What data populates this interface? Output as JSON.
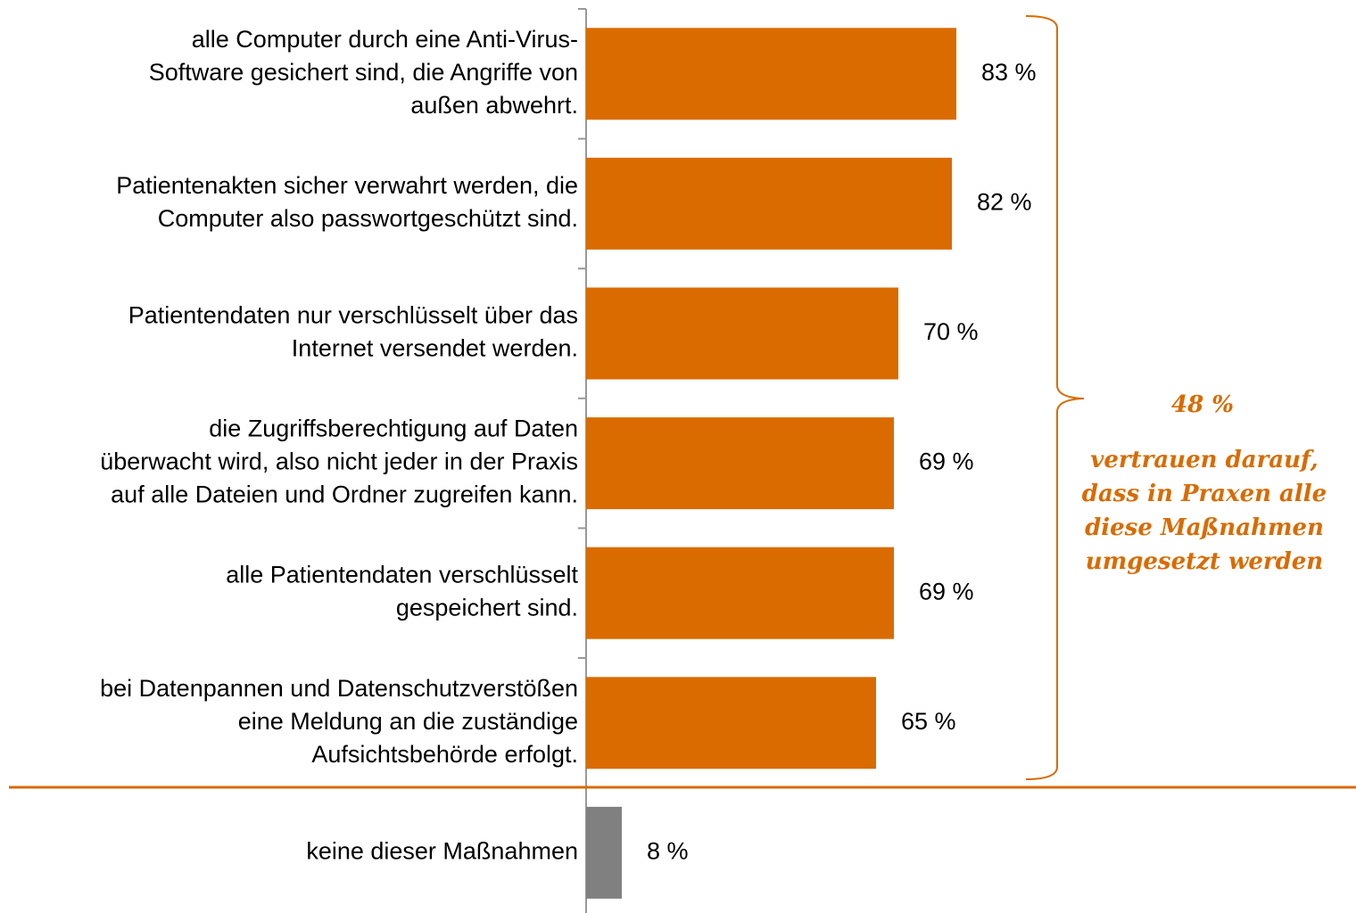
{
  "chart_data": {
    "type": "bar",
    "orientation": "horizontal",
    "categories": [
      "alle Computer durch eine Anti-Virus-\nSoftware gesichert sind, die Angriffe von\naußen abwehrt.",
      "Patientenakten sicher verwahrt werden, die\nComputer also passwortgeschützt sind.",
      "Patientendaten nur verschlüsselt über das\nInternet versendet werden.",
      "die Zugriffsberechtigung auf Daten\nüberwacht wird, also nicht jeder in der Praxis\nauf alle Dateien und Ordner zugreifen kann.",
      "alle Patientendaten verschlüsselt\ngespeichert sind.",
      "bei Datenpannen und Datenschutzverstößen\neine Meldung an die zuständige\nAufsichtsbehörde erfolgt.",
      "keine dieser Maßnahmen"
    ],
    "values": [
      83,
      82,
      70,
      69,
      69,
      65,
      8
    ],
    "value_labels": [
      "83 %",
      "82 %",
      "70 %",
      "69 %",
      "69 %",
      "65 %",
      "8 %"
    ],
    "colors": [
      "#d96b00",
      "#d96b00",
      "#d96b00",
      "#d96b00",
      "#d96b00",
      "#d96b00",
      "#808080"
    ],
    "xlim": [
      0,
      100
    ],
    "annotation": {
      "value": "48 %",
      "text": "vertrauen darauf,\ndass in Praxen alle\ndiese Maßnahmen\numgesetzt werden"
    }
  }
}
